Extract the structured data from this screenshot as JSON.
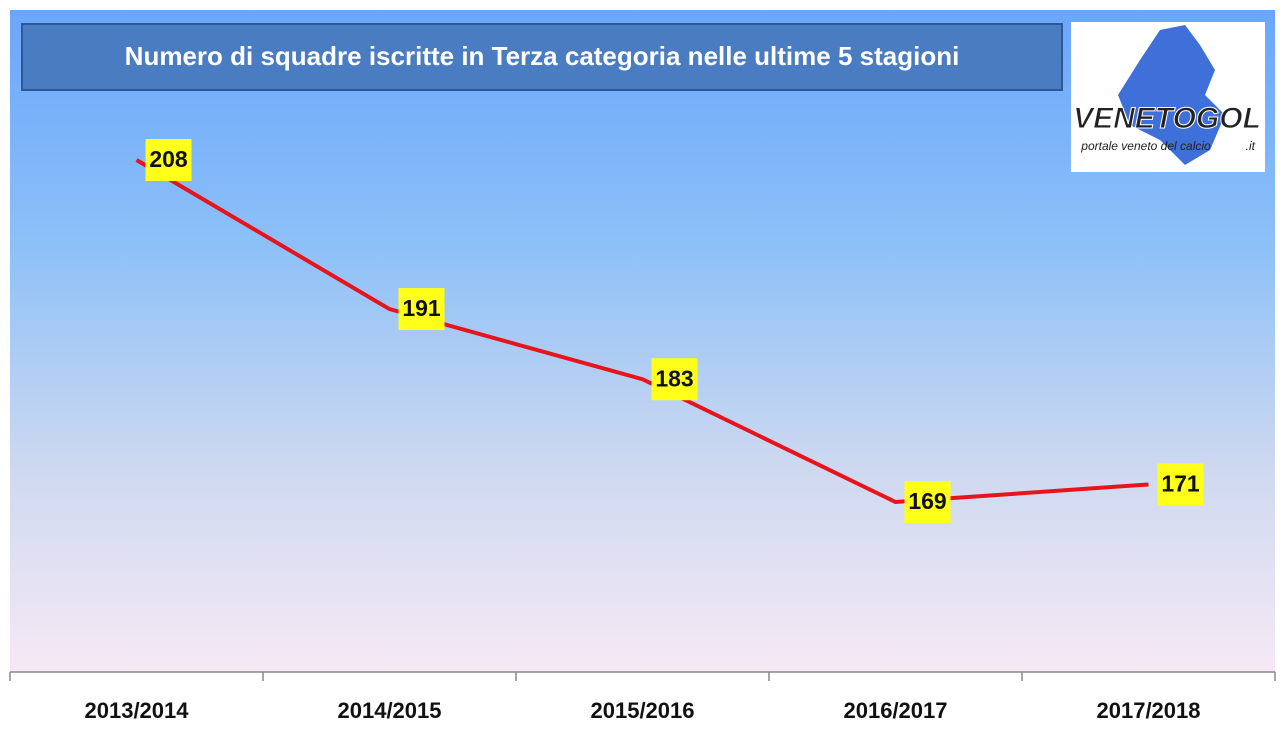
{
  "chart_data": {
    "type": "line",
    "title": "Numero di squadre iscritte in Terza categoria nelle ultime 5 stagioni",
    "categories": [
      "2013/2014",
      "2014/2015",
      "2015/2016",
      "2016/2017",
      "2017/2018"
    ],
    "values": [
      208,
      191,
      183,
      169,
      171
    ],
    "color": "#e8141c"
  },
  "logo": {
    "name": "VENETOGOL",
    "tagline": "portale veneto del calcio",
    "suffix": ".it"
  }
}
